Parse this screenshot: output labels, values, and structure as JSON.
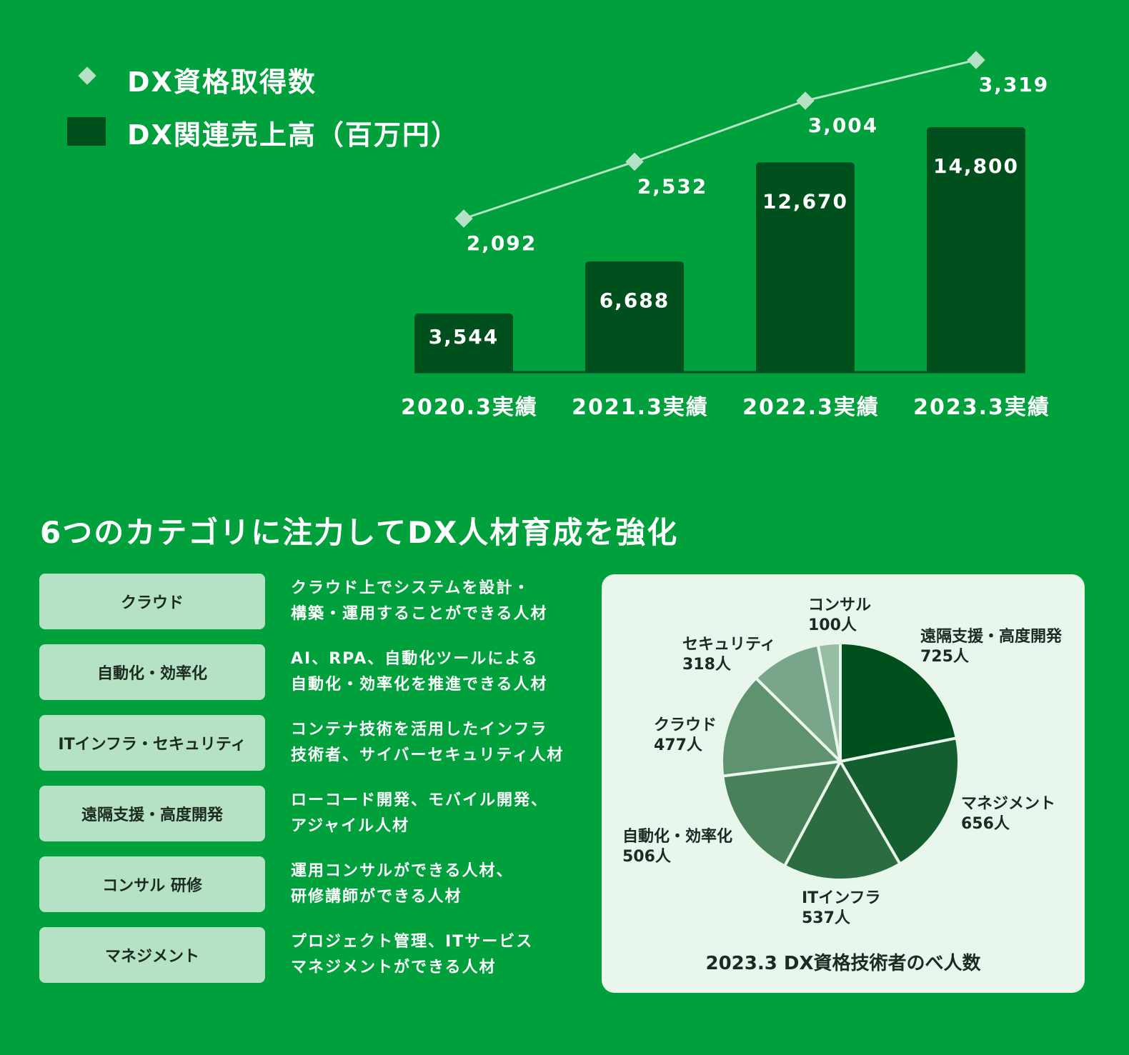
{
  "chart_data": [
    {
      "type": "bar",
      "categories": [
        "2020.3実績",
        "2021.3実績",
        "2022.3実績",
        "2023.3実績"
      ],
      "series": [
        {
          "name": "DX関連売上高（百万円）",
          "type": "bar",
          "values": [
            3544,
            6688,
            12670,
            14800
          ],
          "labels": [
            "3,544",
            "6,688",
            "12,670",
            "14,800"
          ],
          "color": "#00501e"
        },
        {
          "name": "DX資格取得数",
          "type": "line",
          "values": [
            2092,
            2532,
            3004,
            3319
          ],
          "labels": [
            "2,092",
            "2,532",
            "3,004",
            "3,319"
          ],
          "color": "#b5e2c4"
        }
      ],
      "legend": "top-left",
      "grid": false
    },
    {
      "type": "pie",
      "title": "2023.3 DX資格技術者のべ人数",
      "slices": [
        {
          "name": "遠隔支援・高度開発",
          "value": 725,
          "label": "725人",
          "color": "#00501e"
        },
        {
          "name": "マネジメント",
          "value": 656,
          "label": "656人",
          "color": "#155e30"
        },
        {
          "name": "ITインフラ",
          "value": 537,
          "label": "537人",
          "color": "#2b6c41"
        },
        {
          "name": "自動化・効率化",
          "value": 506,
          "label": "506人",
          "color": "#478059"
        },
        {
          "name": "クラウド",
          "value": 477,
          "label": "477人",
          "color": "#5f9370"
        },
        {
          "name": "セキュリティ",
          "value": 318,
          "label": "318人",
          "color": "#79a68a"
        },
        {
          "name": "コンサル",
          "value": 100,
          "label": "100人",
          "color": "#98bda5"
        }
      ]
    }
  ],
  "section_title": "6つのカテゴリに注力してDX人材育成を強化",
  "categories": [
    {
      "name": "クラウド",
      "desc1": "クラウド上でシステムを設計・",
      "desc2": "構築・運用することができる人材"
    },
    {
      "name": "自動化・効率化",
      "desc1": "AI、RPA、自動化ツールによる",
      "desc2": "自動化・効率化を推進できる人材"
    },
    {
      "name": "ITインフラ・セキュリティ",
      "desc1": "コンテナ技術を活用したインフラ",
      "desc2": "技術者、サイバーセキュリティ人材"
    },
    {
      "name": "遠隔支援・高度開発",
      "desc1": "ローコード開発、モバイル開発、",
      "desc2": "アジャイル人材"
    },
    {
      "name": "コンサル 研修",
      "desc1": "運用コンサルができる人材、",
      "desc2": "研修講師ができる人材"
    },
    {
      "name": "マネジメント",
      "desc1": "プロジェクト管理、ITサービス",
      "desc2": "マネジメントができる人材"
    }
  ]
}
